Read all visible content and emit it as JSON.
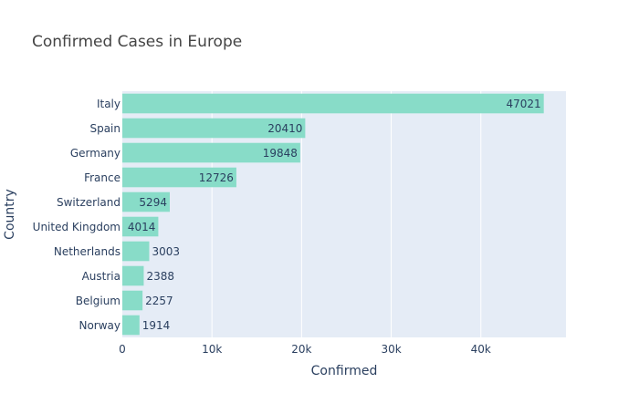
{
  "chart_data": {
    "type": "bar",
    "orientation": "horizontal",
    "title": "Confirmed Cases in Europe",
    "xlabel": "Confirmed",
    "ylabel": "Country",
    "xlim": [
      0,
      49497
    ],
    "x_ticks": [
      0,
      10000,
      20000,
      30000,
      40000
    ],
    "x_tick_labels": [
      "0",
      "10k",
      "20k",
      "30k",
      "40k"
    ],
    "categories": [
      "Italy",
      "Spain",
      "Germany",
      "France",
      "Switzerland",
      "United Kingdom",
      "Netherlands",
      "Austria",
      "Belgium",
      "Norway"
    ],
    "values": [
      47021,
      20410,
      19848,
      12726,
      5294,
      4014,
      3003,
      2388,
      2257,
      1914
    ],
    "data_labels": [
      "47021",
      "20410",
      "19848",
      "12726",
      "5294",
      "4014",
      "3003",
      "2388",
      "2257",
      "1914"
    ],
    "grid": true,
    "colors": {
      "bar": "#88dcc8",
      "plot_background": "#e5ecf6",
      "grid": "#ffffff",
      "text": "#2a3f5f",
      "title": "#444444"
    }
  }
}
